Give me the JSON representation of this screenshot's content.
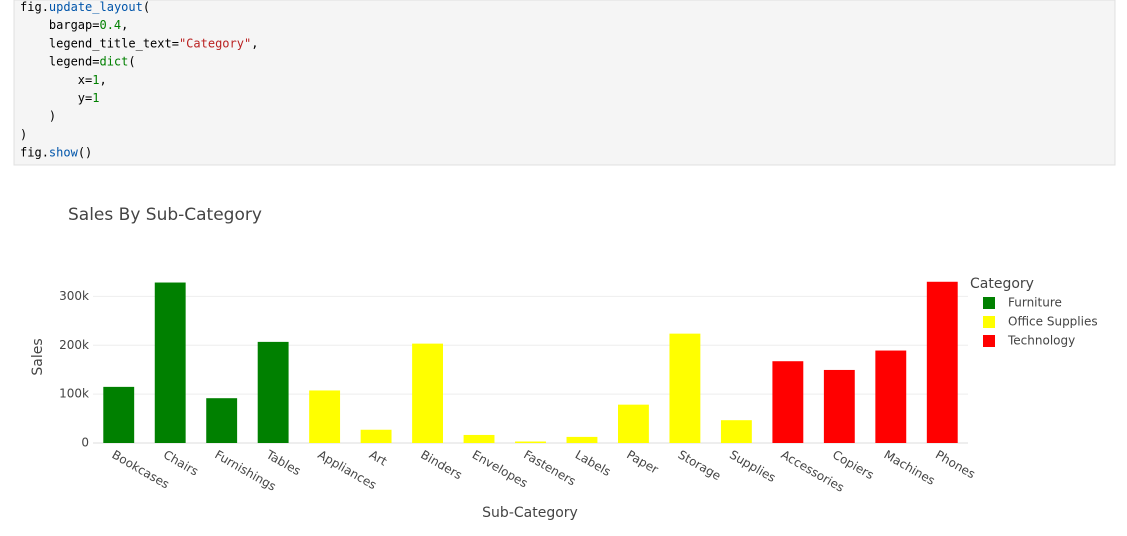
{
  "code_cell": {
    "lines": [
      "fig.update_layout(",
      "    bargap=0.4,",
      "    legend_title_text=\"Category\",",
      "    legend=dict(",
      "        x=1,",
      "        y=1",
      "    )",
      ")",
      "fig.show()"
    ]
  },
  "chart_data": {
    "type": "bar",
    "title": "Sales By Sub-Category",
    "x_label": "Sub-Category",
    "y_label": "Sales",
    "categories": [
      "Bookcases",
      "Chairs",
      "Furnishings",
      "Tables",
      "Appliances",
      "Art",
      "Binders",
      "Envelopes",
      "Fasteners",
      "Labels",
      "Paper",
      "Storage",
      "Supplies",
      "Accessories",
      "Copiers",
      "Machines",
      "Phones"
    ],
    "series": [
      {
        "name": "Furniture",
        "color": "green",
        "values": [
          114880,
          328449,
          91705,
          206966,
          null,
          null,
          null,
          null,
          null,
          null,
          null,
          null,
          null,
          null,
          null,
          null,
          null
        ]
      },
      {
        "name": "Office Supplies",
        "color": "yellow",
        "values": [
          null,
          null,
          null,
          null,
          107532,
          27119,
          203413,
          16476,
          3024,
          12486,
          78479,
          223844,
          46674,
          null,
          null,
          null,
          null
        ]
      },
      {
        "name": "Technology",
        "color": "red",
        "values": [
          null,
          null,
          null,
          null,
          null,
          null,
          null,
          null,
          null,
          null,
          null,
          null,
          null,
          167380,
          149528,
          189239,
          330007
        ]
      }
    ],
    "legend_title": "Category",
    "legend_position": "right",
    "ylim": [
      0,
      350000
    ],
    "yticks": [
      0,
      {
        "value": 100000,
        "label": "100k"
      },
      {
        "value": 200000,
        "label": "200k"
      },
      {
        "value": 300000,
        "label": "300k"
      }
    ],
    "grid": true,
    "bargap": 0.4
  }
}
